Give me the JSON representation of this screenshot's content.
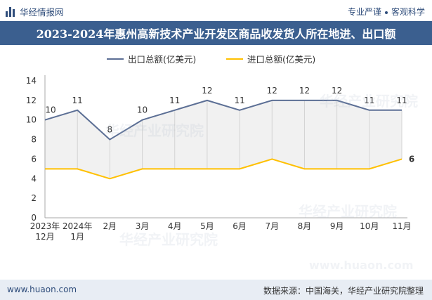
{
  "header": {
    "brand": "华经情报网",
    "tagline_left": "专业严谨",
    "tagline_right": "客观科学"
  },
  "title": "2023-2024年惠州高新技术产业开发区商品收发货人所在地进、出口额",
  "footer": {
    "website": "www.huaon.com",
    "source": "数据来源：中国海关，华经产业研究院整理"
  },
  "watermarks": [
    "华经产业研究院",
    "华经产业研究院",
    "华经产业研究院",
    "华经产业研究院",
    "www.huaon.com"
  ],
  "colors": {
    "export": "#5c6f95",
    "import": "#ffc000",
    "area": "#e6e6e6",
    "title_bg": "#3b5f8f"
  },
  "chart_data": {
    "type": "line",
    "title": "2023-2024年惠州高新技术产业开发区商品收发货人所在地进、出口额",
    "xlabel": "",
    "ylabel": "",
    "ylim": [
      0,
      14
    ],
    "yticks": [
      0,
      2,
      4,
      6,
      8,
      10,
      12,
      14
    ],
    "categories": [
      [
        "2023年",
        "12月"
      ],
      [
        "2024年",
        "1月"
      ],
      [
        "2月"
      ],
      [
        "3月"
      ],
      [
        "4月"
      ],
      [
        "5月"
      ],
      [
        "6月"
      ],
      [
        "7月"
      ],
      [
        "8月"
      ],
      [
        "9月"
      ],
      [
        "10月"
      ],
      [
        "11月"
      ]
    ],
    "series": [
      {
        "name": "出口总额(亿美元)",
        "values": [
          10,
          11,
          8,
          10,
          11,
          12,
          11,
          12,
          12,
          12,
          11,
          11
        ],
        "labels": [
          "10",
          "11",
          "8",
          "10",
          "11",
          "12",
          "11",
          "12",
          "12",
          "12",
          "11",
          "11"
        ],
        "color": "#5c6f95"
      },
      {
        "name": "进口总额(亿美元)",
        "values": [
          5,
          5,
          4,
          5,
          5,
          5,
          5,
          6,
          5,
          5,
          5,
          6
        ],
        "labels": [
          "6"
        ],
        "color": "#ffc000"
      }
    ],
    "legend_position": "top",
    "grid": false
  }
}
